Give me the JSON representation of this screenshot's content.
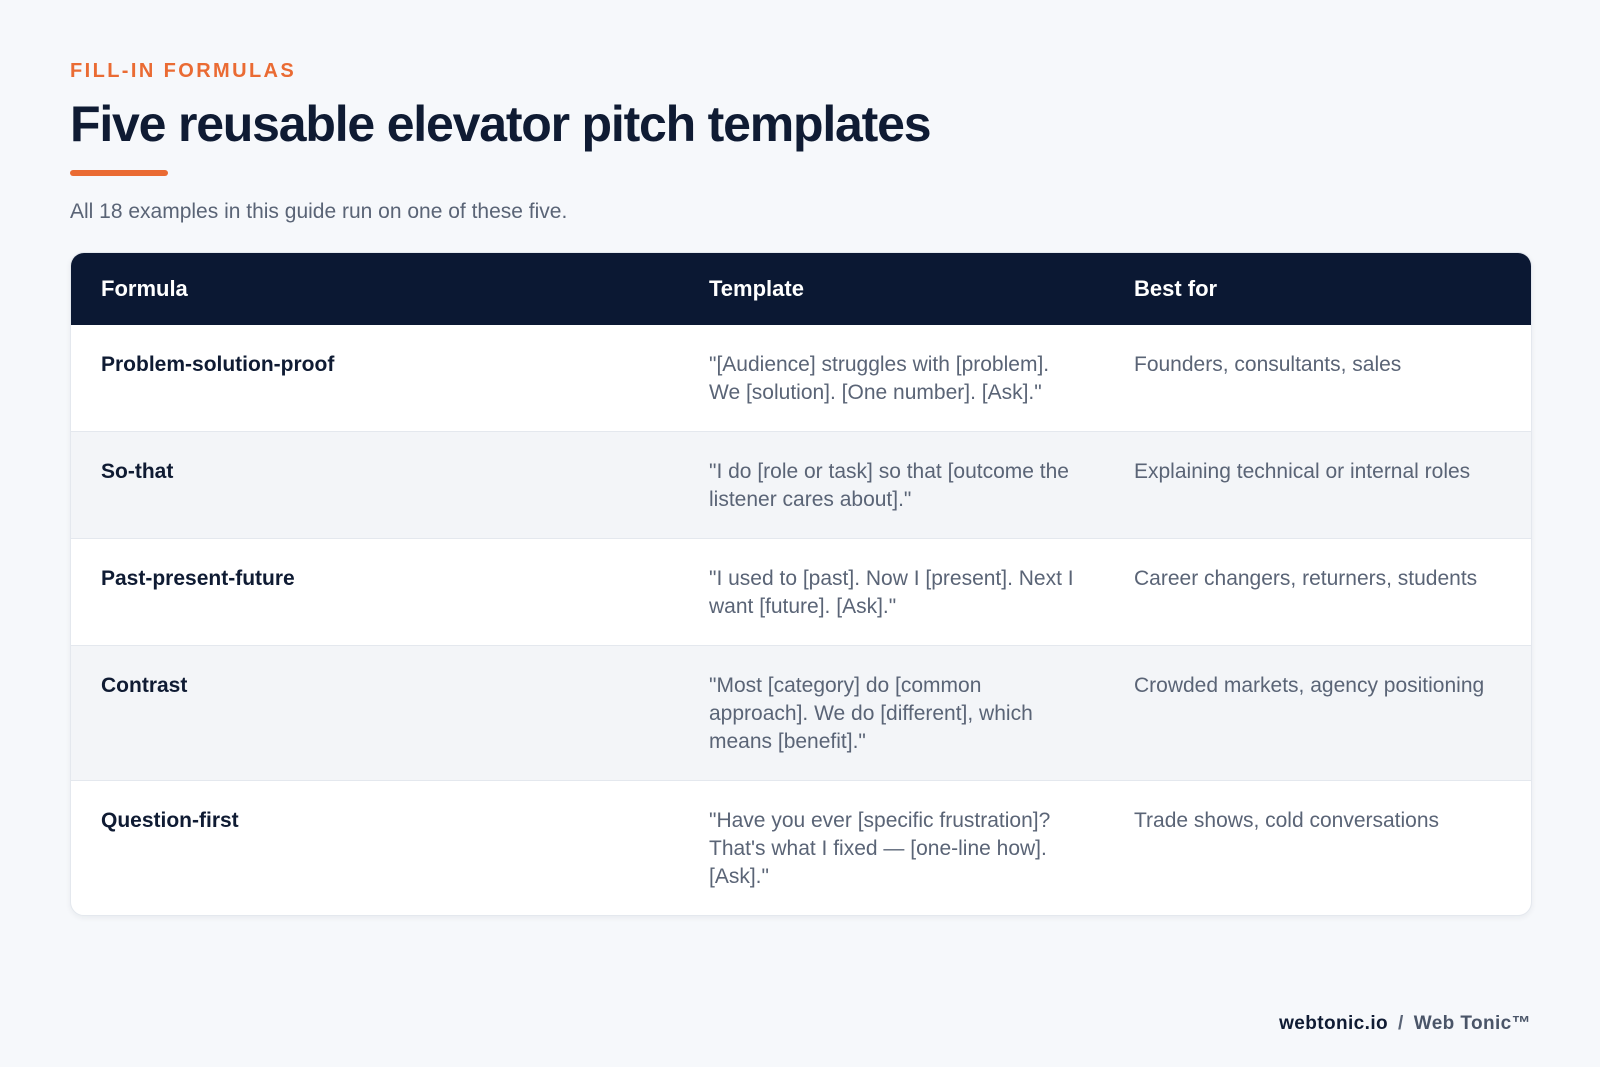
{
  "header": {
    "eyebrow": "FILL-IN FORMULAS",
    "title": "Five reusable elevator pitch templates",
    "subtitle": "All 18 examples in this guide run on one of these five."
  },
  "table": {
    "columns": [
      "Formula",
      "Template",
      "Best for"
    ],
    "rows": [
      {
        "formula": "Problem-solution-proof",
        "template": "\"[Audience] struggles with [problem]. We [solution]. [One number]. [Ask].\"",
        "best_for": "Founders, consultants, sales"
      },
      {
        "formula": "So-that",
        "template": "\"I do [role or task] so that [outcome the listener cares about].\"",
        "best_for": "Explaining technical or internal roles"
      },
      {
        "formula": "Past-present-future",
        "template": "\"I used to [past]. Now I [present]. Next I want [future]. [Ask].\"",
        "best_for": "Career changers, returners, students"
      },
      {
        "formula": "Contrast",
        "template": "\"Most [category] do [common approach]. We do [different], which means [benefit].\"",
        "best_for": "Crowded markets, agency positioning"
      },
      {
        "formula": "Question-first",
        "template": "\"Have you ever [specific frustration]? That's what I fixed — [one-line how]. [Ask].\"",
        "best_for": "Trade shows, cold conversations"
      }
    ]
  },
  "footer": {
    "site": "webtonic.io",
    "separator": "/",
    "brand": "Web Tonic™"
  },
  "colors": {
    "accent": "#ea6b33",
    "navy": "#0b1833",
    "background": "#f6f8fb"
  }
}
